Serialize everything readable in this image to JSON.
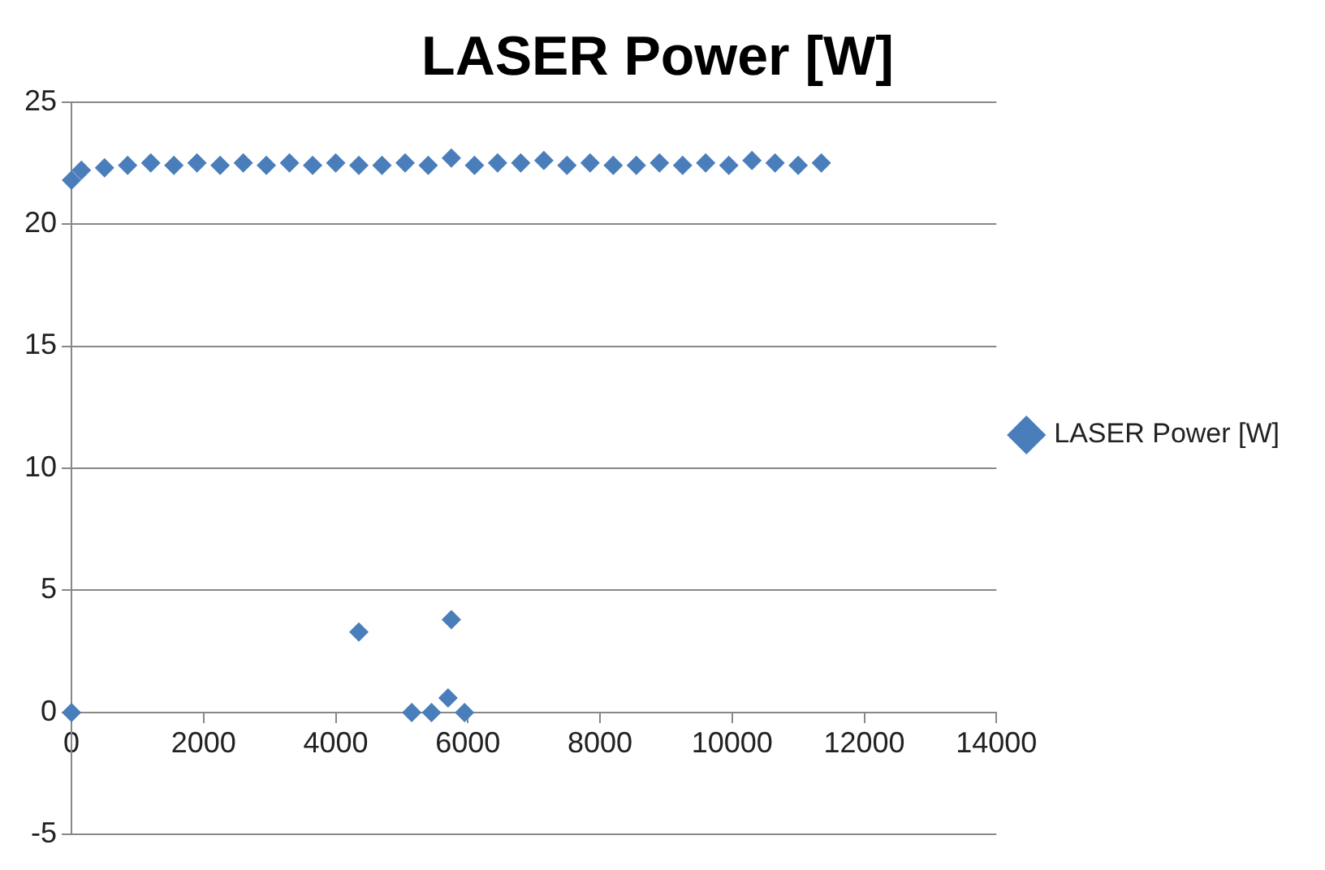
{
  "chart_data": {
    "type": "scatter",
    "title": "LASER Power [W]",
    "x": [
      0,
      150,
      500,
      850,
      1200,
      1550,
      1900,
      2250,
      2600,
      2950,
      3300,
      3650,
      4000,
      4350,
      4700,
      5050,
      5400,
      5750,
      6100,
      6450,
      6800,
      7150,
      7500,
      7850,
      8200,
      8550,
      8900,
      9250,
      9600,
      9950,
      10300,
      10650,
      11000,
      11350,
      0,
      4350,
      5750,
      5150,
      5450,
      5700,
      5950
    ],
    "series": [
      {
        "name": "LASER Power [W]",
        "color": "#4a7ebb",
        "values": [
          21.8,
          22.2,
          22.3,
          22.4,
          22.5,
          22.4,
          22.5,
          22.4,
          22.5,
          22.4,
          22.5,
          22.4,
          22.5,
          22.4,
          22.4,
          22.5,
          22.4,
          22.7,
          22.4,
          22.5,
          22.5,
          22.6,
          22.4,
          22.5,
          22.4,
          22.4,
          22.5,
          22.4,
          22.5,
          22.4,
          22.6,
          22.5,
          22.4,
          22.5,
          0,
          3.3,
          3.8,
          0,
          0,
          0.6,
          0
        ]
      }
    ],
    "xlim": [
      0,
      14000
    ],
    "xticks": [
      0,
      2000,
      4000,
      6000,
      8000,
      10000,
      12000,
      14000
    ],
    "ylim": [
      -5,
      25
    ],
    "yticks": [
      -5,
      0,
      5,
      10,
      15,
      20,
      25
    ],
    "grid": "y",
    "legend": "right",
    "marker": "diamond"
  }
}
